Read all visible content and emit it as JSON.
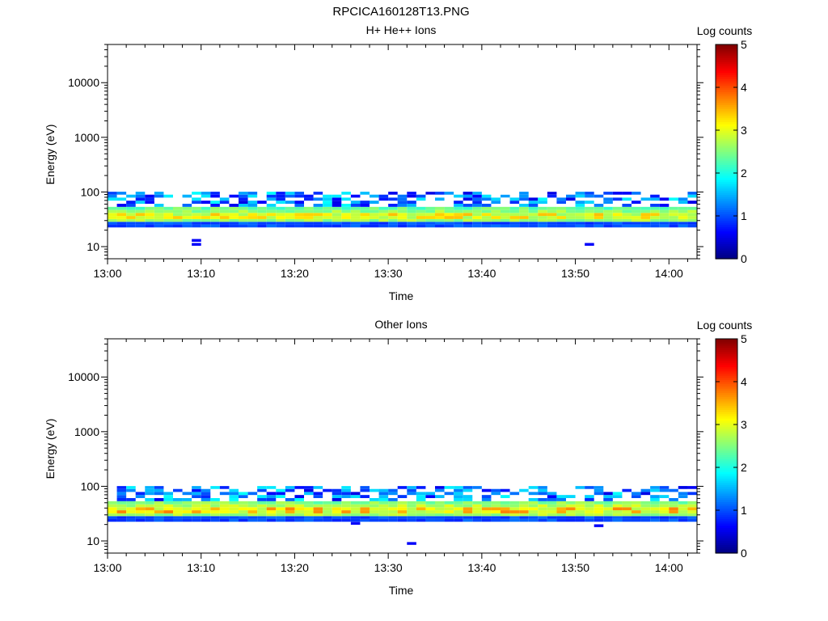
{
  "page_title": "RPCICA160128T13.PNG",
  "colorbar": {
    "label": "Log counts",
    "ticks": [
      "0",
      "1",
      "2",
      "3",
      "4",
      "5"
    ],
    "range": [
      0,
      5
    ],
    "colors": [
      "#000080",
      "#0000ff",
      "#0080ff",
      "#00ffff",
      "#80ff80",
      "#ffff00",
      "#ff8000",
      "#ff0000",
      "#800000"
    ]
  },
  "chart_data": [
    {
      "type": "heatmap",
      "title": "H+ He++ Ions",
      "xlabel": "Time",
      "ylabel": "Energy (eV)",
      "xscale": "time",
      "yscale": "log",
      "xlim": [
        "13:00",
        "14:03"
      ],
      "ylim": [
        6,
        50000
      ],
      "x_ticks": [
        "13:00",
        "13:10",
        "13:20",
        "13:30",
        "13:40",
        "13:50",
        "14:00"
      ],
      "y_ticks": [
        "10",
        "100",
        "1000",
        "10000"
      ],
      "time_bins": [
        "13:00",
        "13:01",
        "13:02",
        "13:03",
        "13:04",
        "13:05",
        "13:06",
        "13:07",
        "13:08",
        "13:09",
        "13:10",
        "13:11",
        "13:12",
        "13:13",
        "13:14",
        "13:15",
        "13:16",
        "13:17",
        "13:18",
        "13:19",
        "13:20",
        "13:21",
        "13:22",
        "13:23",
        "13:24",
        "13:25",
        "13:26",
        "13:27",
        "13:28",
        "13:29",
        "13:30",
        "13:31",
        "13:32",
        "13:33",
        "13:34",
        "13:35",
        "13:36",
        "13:37",
        "13:38",
        "13:39",
        "13:40",
        "13:41",
        "13:42",
        "13:43",
        "13:44",
        "13:45",
        "13:46",
        "13:47",
        "13:48",
        "13:49",
        "13:50",
        "13:51",
        "13:52",
        "13:53",
        "13:54",
        "13:55",
        "13:56",
        "13:57",
        "13:58",
        "13:59",
        "14:00",
        "14:01",
        "14:02"
      ],
      "energy_bins_eV": [
        10,
        11,
        13,
        15,
        18,
        21,
        24,
        27,
        30,
        34,
        39,
        44,
        50,
        57,
        65,
        74,
        84,
        95
      ],
      "band": {
        "lower_eV": 25,
        "core_eV": 36,
        "upper_eV": 50,
        "core_counts": 3.0,
        "peak_counts": 3.3,
        "sparse_upper_eV": 95
      },
      "sparse_cells": [
        {
          "time": "13:09",
          "energy_eV": 11,
          "counts": 0.6
        },
        {
          "time": "13:09",
          "energy_eV": 13,
          "counts": 0.6
        },
        {
          "time": "13:51",
          "energy_eV": 11,
          "counts": 0.6
        },
        {
          "time": "13:34",
          "energy_eV": 95,
          "counts": 0.5
        },
        {
          "time": "13:38",
          "energy_eV": 95,
          "counts": 0.5
        },
        {
          "time": "13:42",
          "energy_eV": 84,
          "counts": 1.4
        },
        {
          "time": "13:47",
          "energy_eV": 95,
          "counts": 0.5
        }
      ]
    },
    {
      "type": "heatmap",
      "title": "Other Ions",
      "xlabel": "Time",
      "ylabel": "Energy (eV)",
      "xscale": "time",
      "yscale": "log",
      "xlim": [
        "13:00",
        "14:03"
      ],
      "ylim": [
        6,
        50000
      ],
      "x_ticks": [
        "13:00",
        "13:10",
        "13:20",
        "13:30",
        "13:40",
        "13:50",
        "14:00"
      ],
      "y_ticks": [
        "10",
        "100",
        "1000",
        "10000"
      ],
      "time_bins": [
        "13:00",
        "13:01",
        "13:02",
        "13:03",
        "13:04",
        "13:05",
        "13:06",
        "13:07",
        "13:08",
        "13:09",
        "13:10",
        "13:11",
        "13:12",
        "13:13",
        "13:14",
        "13:15",
        "13:16",
        "13:17",
        "13:18",
        "13:19",
        "13:20",
        "13:21",
        "13:22",
        "13:23",
        "13:24",
        "13:25",
        "13:26",
        "13:27",
        "13:28",
        "13:29",
        "13:30",
        "13:31",
        "13:32",
        "13:33",
        "13:34",
        "13:35",
        "13:36",
        "13:37",
        "13:38",
        "13:39",
        "13:40",
        "13:41",
        "13:42",
        "13:43",
        "13:44",
        "13:45",
        "13:46",
        "13:47",
        "13:48",
        "13:49",
        "13:50",
        "13:51",
        "13:52",
        "13:53",
        "13:54",
        "13:55",
        "13:56",
        "13:57",
        "13:58",
        "13:59",
        "14:00",
        "14:01",
        "14:02"
      ],
      "energy_bins_eV": [
        10,
        11,
        13,
        15,
        18,
        21,
        24,
        27,
        30,
        34,
        39,
        44,
        50,
        57,
        65,
        74,
        84,
        95
      ],
      "band": {
        "lower_eV": 25,
        "core_eV": 37,
        "upper_eV": 55,
        "core_counts": 3.1,
        "peak_counts": 3.6,
        "sparse_upper_eV": 95
      },
      "sparse_cells": [
        {
          "time": "13:32",
          "energy_eV": 9,
          "counts": 0.6
        },
        {
          "time": "13:52",
          "energy_eV": 19,
          "counts": 0.6
        },
        {
          "time": "13:26",
          "energy_eV": 21,
          "counts": 0.6
        },
        {
          "time": "14:01",
          "energy_eV": 95,
          "counts": 0.5
        }
      ]
    }
  ]
}
